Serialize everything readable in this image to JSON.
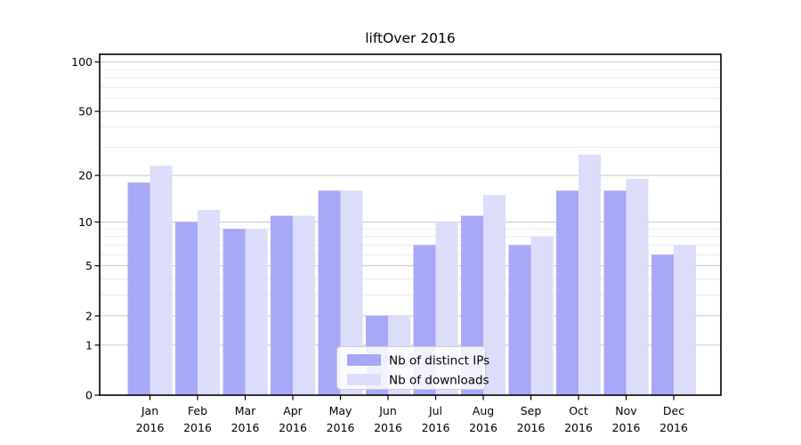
{
  "chart_data": {
    "type": "bar",
    "title": "liftOver 2016",
    "categories": [
      "Jan 2016",
      "Feb 2016",
      "Mar 2016",
      "Apr 2016",
      "May 2016",
      "Jun 2016",
      "Jul 2016",
      "Aug 2016",
      "Sep 2016",
      "Oct 2016",
      "Nov 2016",
      "Dec 2016"
    ],
    "series": [
      {
        "name": "Nb of distinct IPs",
        "color": "#a8a8f8",
        "values": [
          18,
          10,
          9,
          11,
          16,
          2,
          7,
          11,
          7,
          16,
          16,
          6
        ]
      },
      {
        "name": "Nb of downloads",
        "color": "#dcdcfb",
        "values": [
          23,
          12,
          9,
          11,
          16,
          2,
          10,
          15,
          8,
          27,
          19,
          7
        ]
      }
    ],
    "xlabel": "",
    "ylabel": "",
    "y_scale": "log1p",
    "ylim": [
      0,
      111.4
    ],
    "y_ticks": [
      0,
      1,
      2,
      5,
      10,
      20,
      50,
      100
    ],
    "y_minor_gridlines": [
      3,
      4,
      6,
      7,
      8,
      9,
      30,
      40,
      60,
      70,
      80,
      90
    ],
    "grid": true,
    "legend_position": "inside-bottom-center",
    "colors": {
      "frame": "#000000",
      "grid_major": "#c8c8c8",
      "grid_minor": "#eaeaea",
      "legend_border": "#cccccc",
      "legend_background": "#ffffff",
      "text": "#000000"
    }
  }
}
